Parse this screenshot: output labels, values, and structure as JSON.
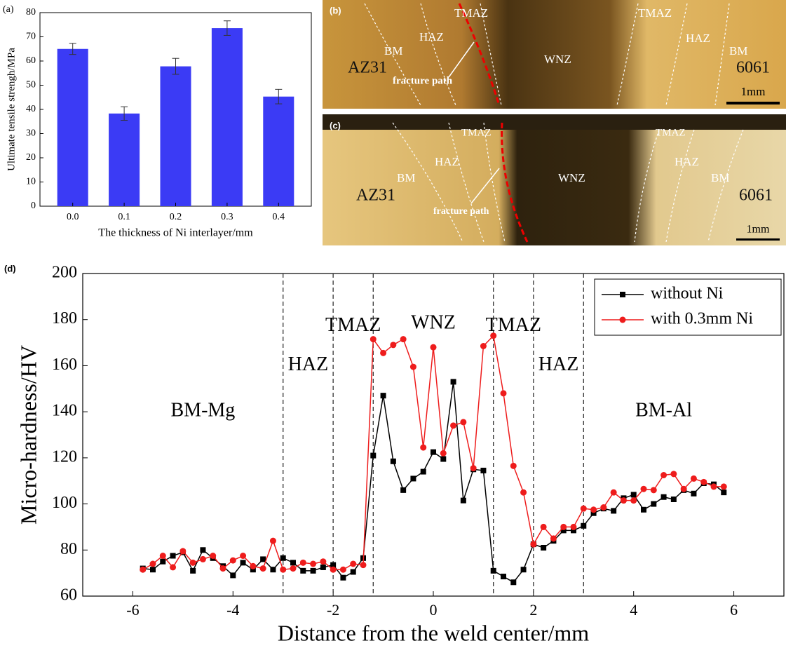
{
  "chart_data": [
    {
      "type": "bar",
      "panel": "(a)",
      "ylabel": "Ultimate tensile strengh/MPa",
      "xlabel": "The thickness of Ni interlayer/mm",
      "categories": [
        "0.0",
        "0.1",
        "0.2",
        "0.3",
        "0.4"
      ],
      "values": [
        65,
        38.3,
        57.8,
        73.6,
        45.3
      ],
      "errors": [
        2.3,
        2.8,
        3.3,
        3.0,
        3.0
      ],
      "color": "#3b3bf5",
      "ylim": [
        0,
        80
      ],
      "yticks": [
        0,
        10,
        20,
        30,
        40,
        50,
        60,
        70,
        80
      ]
    },
    {
      "type": "line",
      "panel": "(d)",
      "ylabel": "Micro-hardness/HV",
      "xlabel": "Distance from the weld center/mm",
      "x": [
        -5.8,
        -5.6,
        -5.4,
        -5.2,
        -5.0,
        -4.8,
        -4.6,
        -4.4,
        -4.2,
        -4.0,
        -3.8,
        -3.6,
        -3.4,
        -3.2,
        -3.0,
        -2.8,
        -2.6,
        -2.4,
        -2.2,
        -2.0,
        -1.8,
        -1.6,
        -1.4,
        -1.2,
        -1.0,
        -0.8,
        -0.6,
        -0.4,
        -0.2,
        0,
        0.2,
        0.4,
        0.6,
        0.8,
        1.0,
        1.2,
        1.4,
        1.6,
        1.8,
        2.0,
        2.2,
        2.4,
        2.6,
        2.8,
        3.0,
        3.2,
        3.4,
        3.6,
        3.8,
        4.0,
        4.2,
        4.4,
        4.6,
        4.8,
        5.0,
        5.2,
        5.4,
        5.6,
        5.8
      ],
      "series": [
        {
          "name": "without Ni",
          "color": "#000000",
          "marker": "square",
          "values": [
            72,
            71.5,
            75,
            77.5,
            79,
            71,
            80,
            76.5,
            73,
            69,
            74.5,
            71.5,
            76,
            71.5,
            76.5,
            74.5,
            71,
            71,
            72.5,
            73.5,
            68,
            70.5,
            76.5,
            121,
            147,
            118.5,
            106,
            111,
            114,
            122.5,
            119.5,
            153,
            101.5,
            115,
            114.5,
            71,
            68.5,
            66,
            71.5,
            82.5,
            81,
            84,
            88.5,
            88.5,
            90.5,
            96,
            98,
            97,
            102.5,
            104,
            97.5,
            100,
            103,
            102,
            106,
            104.5,
            109,
            108.5,
            105
          ]
        },
        {
          "name": "with 0.3mm Ni",
          "color": "#ee1c1c",
          "marker": "circle",
          "values": [
            71.5,
            74,
            77.5,
            72.5,
            79.5,
            74.5,
            76,
            77.5,
            72,
            75.5,
            77.5,
            73,
            72,
            84,
            71.5,
            72,
            74.5,
            74,
            75,
            71.5,
            71.5,
            74,
            73.5,
            171.5,
            165.5,
            169,
            171.5,
            159.5,
            124.5,
            168,
            122,
            134,
            135.5,
            115.5,
            168.5,
            173,
            148,
            116.5,
            105,
            82.5,
            90,
            85,
            90,
            90,
            98,
            97.5,
            98.5,
            105,
            101.5,
            101.5,
            106.5,
            106,
            112.5,
            113,
            106.5,
            111,
            109.5,
            107.5,
            107.5
          ]
        }
      ],
      "xlim": [
        -7,
        7
      ],
      "xticks": [
        -6,
        -4,
        -2,
        0,
        2,
        4,
        6
      ],
      "ylim": [
        60,
        200
      ],
      "yticks": [
        60,
        80,
        100,
        120,
        140,
        160,
        180,
        200
      ],
      "vlines": [
        -3,
        -2,
        -1.2,
        1.2,
        2,
        3
      ],
      "legend": "upper right",
      "annotations": [
        {
          "text": "BM-Mg",
          "x": -4.6,
          "y": 140
        },
        {
          "text": "HAZ",
          "x": -2.5,
          "y": 160
        },
        {
          "text": "TMAZ",
          "x": -1.6,
          "y": 177
        },
        {
          "text": "WNZ",
          "x": 0,
          "y": 178
        },
        {
          "text": "TMAZ",
          "x": 1.6,
          "y": 177
        },
        {
          "text": "HAZ",
          "x": 2.5,
          "y": 160
        },
        {
          "text": "BM-Al",
          "x": 4.6,
          "y": 140
        }
      ]
    }
  ],
  "micrographs": [
    {
      "panel": "(b)",
      "tmaz_left": "TMAZ",
      "tmaz_right": "TMAZ",
      "haz_left": "HAZ",
      "haz_right": "HAZ",
      "bm_left": "BM",
      "bm_right": "BM",
      "left_alloy": "AZ31",
      "right_alloy": "6061",
      "center": "WNZ",
      "fracture": "fracture path",
      "scale": "1mm"
    },
    {
      "panel": "(c)",
      "tmaz_left": "TMAZ",
      "tmaz_right": "TMAZ",
      "haz_left": "HAZ",
      "haz_right": "HAZ",
      "bm_left": "BM",
      "bm_right": "BM",
      "left_alloy": "AZ31",
      "right_alloy": "6061",
      "center": "WNZ",
      "fracture": "fracture path",
      "scale": "1mm"
    }
  ]
}
